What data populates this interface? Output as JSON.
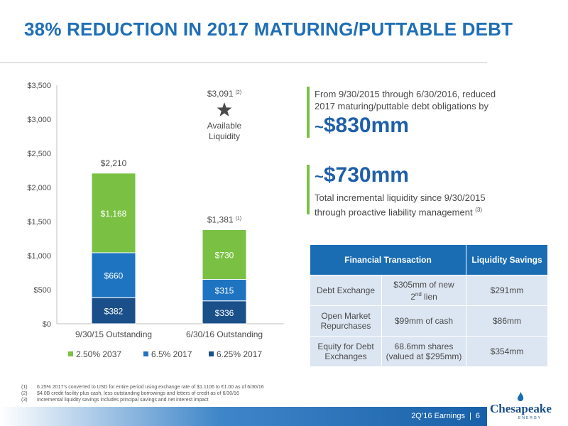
{
  "title": "38% REDUCTION IN 2017 MATURING/PUTTABLE DEBT",
  "chart_data": {
    "type": "bar",
    "stacked": true,
    "categories": [
      "9/30/15 Outstanding",
      "6/30/16 Outstanding"
    ],
    "series": [
      {
        "name": "6.25% 2017",
        "color": "#1a4f8a",
        "values": [
          382,
          336
        ]
      },
      {
        "name": "6.5% 2017",
        "color": "#1f74c2",
        "values": [
          660,
          315
        ]
      },
      {
        "name": "2.50% 2037",
        "color": "#7ac143",
        "values": [
          1168,
          730
        ]
      }
    ],
    "segment_labels": [
      [
        "$382",
        "$660",
        "$1,168"
      ],
      [
        "$336",
        "$315",
        "$730"
      ]
    ],
    "total_labels": [
      "$2,210",
      "$1,381"
    ],
    "total_label_notes": [
      "",
      "(1)"
    ],
    "y_ticks": [
      "$0",
      "$500",
      "$1,000",
      "$1,500",
      "$2,000",
      "$2,500",
      "$3,000",
      "$3,500"
    ],
    "ylim": [
      0,
      3500
    ],
    "grid": false,
    "legend_position": "bottom",
    "legend": [
      "2.50% 2037",
      "6.5% 2017",
      "6.25% 2017"
    ],
    "annotation": {
      "value": 3091,
      "value_label": "$3,091",
      "note": "(2)",
      "icon": "star-icon",
      "line1": "Available",
      "line2": "Liquidity"
    }
  },
  "callout1": {
    "line1": "From 9/30/2015 through 6/30/2016, reduced",
    "line2": "2017 maturing/puttable debt obligations by",
    "tilde": "~",
    "value": "$830mm"
  },
  "callout2": {
    "tilde": "~",
    "value": "$730mm",
    "line1": "Total incremental liquidity since 9/30/2015",
    "line2": "through proactive liability management",
    "note": "(3)"
  },
  "table": {
    "headers": [
      "Financial Transaction",
      "Liquidity Savings"
    ],
    "rows": [
      {
        "transaction": "Debt Exchange",
        "detail_a": "$305mm of new",
        "detail_b": "2",
        "detail_sup": "nd",
        "detail_c": " lien",
        "savings": "$291mm"
      },
      {
        "transaction_a": "Open Market",
        "transaction_b": "Repurchases",
        "detail": "$99mm of cash",
        "savings": "$86mm"
      },
      {
        "transaction_a": "Equity for Debt",
        "transaction_b": "Exchanges",
        "detail_a": "68.6mm shares",
        "detail_b": "(valued at $295mm)",
        "savings": "$354mm"
      }
    ]
  },
  "footnotes": [
    {
      "num": "(1)",
      "text": "6.25% 2017’s converted to USD for entire period using exchange rate of $1.1106 to €1.00 as of 6/30/16"
    },
    {
      "num": "(2)",
      "text": "$4.0B credit facility plus cash, less outstanding borrowings and letters of credit as of 6/30/16"
    },
    {
      "num": "(3)",
      "text": "Incremental liquidity savings includes principal savings and net interest impact"
    }
  ],
  "footer": {
    "label": "2Q’16 Earnings",
    "separator": "|",
    "page": "6"
  },
  "logo": {
    "text": "Chesapeake",
    "sub": "ENERGY"
  }
}
